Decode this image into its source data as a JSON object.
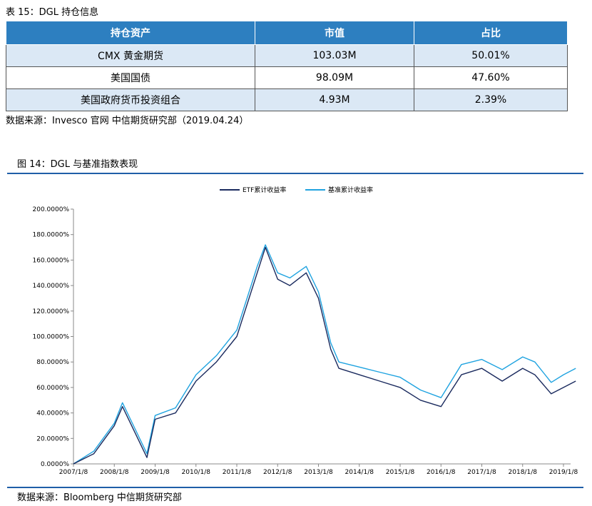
{
  "table": {
    "caption": "表 15：DGL 持仓信息",
    "headers": [
      "持仓资产",
      "市值",
      "占比"
    ],
    "rows": [
      [
        "CMX 黄金期货",
        "103.03M",
        "50.01%"
      ],
      [
        "美国国债",
        "98.09M",
        "47.60%"
      ],
      [
        "美国政府货币投资组合",
        "4.93M",
        "2.39%"
      ]
    ],
    "source": "数据来源：Invesco 官网  中信期货研究部（2019.04.24）"
  },
  "figure": {
    "caption": "图 14：DGL 与基准指数表现",
    "source": "数据来源：Bloomberg  中信期货研究部"
  },
  "chart_data": {
    "type": "line",
    "legend_position": "top-center",
    "grid": false,
    "ylim": [
      0,
      200
    ],
    "y_ticks": [
      "200.0000%",
      "180.0000%",
      "160.0000%",
      "140.0000%",
      "120.0000%",
      "100.0000%",
      "80.0000%",
      "60.0000%",
      "40.0000%",
      "20.0000%",
      "0.0000%"
    ],
    "x_ticks": [
      "2007/1/8",
      "2008/1/8",
      "2009/1/8",
      "2010/1/8",
      "2011/1/8",
      "2012/1/8",
      "2013/1/8",
      "2014/1/8",
      "2015/1/8",
      "2016/1/8",
      "2017/1/8",
      "2018/1/8",
      "2019/1/8"
    ],
    "x": [
      2007.0,
      2007.5,
      2008.0,
      2008.2,
      2008.5,
      2008.8,
      2009.0,
      2009.5,
      2010.0,
      2010.5,
      2011.0,
      2011.3,
      2011.5,
      2011.7,
      2012.0,
      2012.3,
      2012.7,
      2013.0,
      2013.3,
      2013.5,
      2014.0,
      2014.5,
      2015.0,
      2015.5,
      2016.0,
      2016.5,
      2017.0,
      2017.5,
      2018.0,
      2018.3,
      2018.7,
      2019.0,
      2019.3
    ],
    "series": [
      {
        "name": "ETF累计收益率",
        "color": "#1a2a5e",
        "values": [
          0,
          8,
          30,
          45,
          25,
          5,
          35,
          40,
          65,
          80,
          100,
          130,
          150,
          170,
          145,
          140,
          150,
          130,
          90,
          75,
          70,
          65,
          60,
          50,
          45,
          70,
          75,
          65,
          75,
          70,
          55,
          60,
          65
        ]
      },
      {
        "name": "基准累计收益率",
        "color": "#1fa3e0",
        "values": [
          0,
          10,
          32,
          48,
          28,
          8,
          38,
          44,
          70,
          85,
          105,
          135,
          155,
          172,
          150,
          146,
          155,
          135,
          95,
          80,
          76,
          72,
          68,
          58,
          52,
          78,
          82,
          74,
          84,
          80,
          64,
          70,
          75
        ]
      }
    ]
  }
}
